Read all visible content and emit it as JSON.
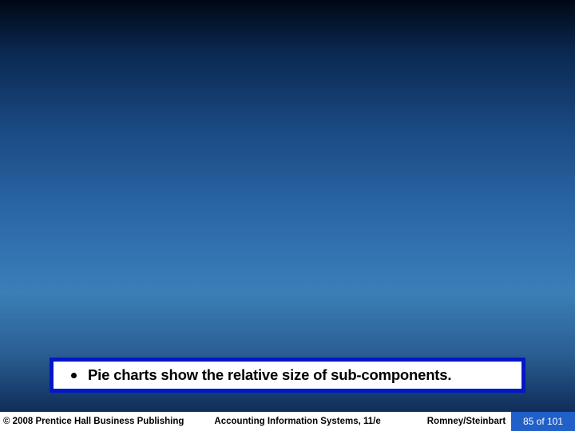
{
  "slide": {
    "background": {
      "gradient_stops": [
        "#000814",
        "#0a2850",
        "#1a4a82",
        "#2b68a8",
        "#3a7fb8",
        "#2b5e92",
        "#143664",
        "#081e40"
      ]
    },
    "content_box": {
      "border_color": "#0018c8",
      "background_color": "#ffffff",
      "bullet": {
        "text": "Pie charts show the relative size of sub-components.",
        "font_size": 18.5,
        "font_weight": 700,
        "color": "#000000"
      }
    },
    "footer": {
      "copyright": "© 2008 Prentice Hall Business Publishing",
      "title": "Accounting Information Systems, 11/e",
      "authors": "Romney/Steinbart",
      "page": "85 of 101",
      "page_bg": "#2060c8",
      "page_color": "#ffffff",
      "font_size": 11.5
    }
  }
}
